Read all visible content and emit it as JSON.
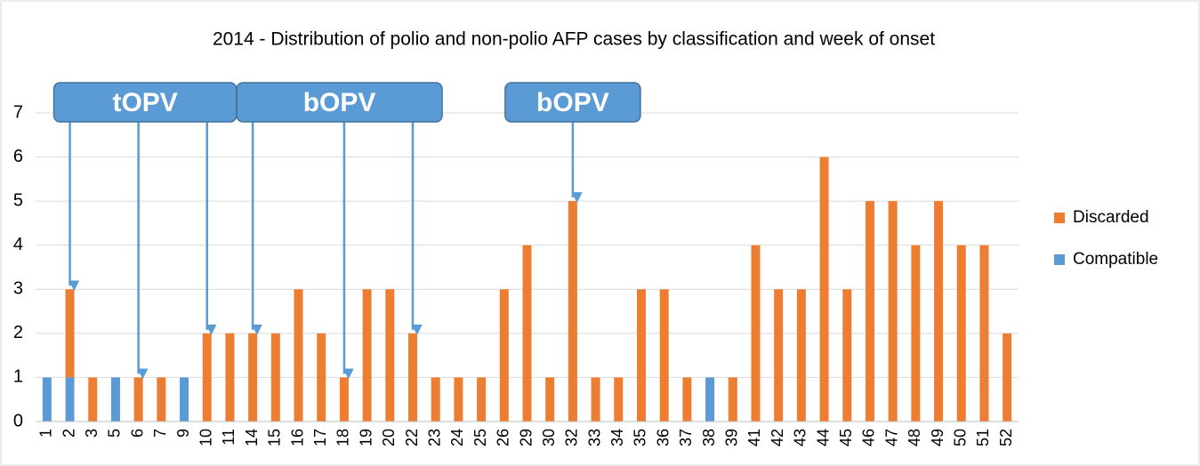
{
  "chart_data": {
    "type": "stacked_bar",
    "title": "2014 - Distribution of polio and non-polio AFP cases by classification and week of onset",
    "categories": [
      "1",
      "2",
      "3",
      "5",
      "6",
      "7",
      "9",
      "10",
      "11",
      "14",
      "15",
      "16",
      "17",
      "18",
      "19",
      "20",
      "22",
      "23",
      "24",
      "25",
      "26",
      "29",
      "30",
      "32",
      "33",
      "34",
      "35",
      "36",
      "37",
      "38",
      "39",
      "41",
      "42",
      "43",
      "44",
      "45",
      "46",
      "47",
      "48",
      "49",
      "50",
      "51",
      "52"
    ],
    "series": [
      {
        "name": "Compatible",
        "color": "#5b9bd5",
        "values": [
          1,
          1,
          0,
          1,
          0,
          0,
          1,
          0,
          0,
          0,
          0,
          0,
          0,
          0,
          0,
          0,
          0,
          0,
          0,
          0,
          0,
          0,
          0,
          0,
          0,
          0,
          0,
          0,
          0,
          1,
          0,
          0,
          0,
          0,
          0,
          0,
          0,
          0,
          0,
          0,
          0,
          0,
          0
        ]
      },
      {
        "name": "Discarded",
        "color": "#ed7d31",
        "values": [
          0,
          2,
          1,
          0,
          1,
          1,
          0,
          2,
          2,
          2,
          2,
          3,
          2,
          1,
          3,
          3,
          2,
          1,
          1,
          1,
          3,
          4,
          1,
          5,
          1,
          1,
          3,
          3,
          1,
          0,
          1,
          4,
          3,
          3,
          6,
          3,
          5,
          5,
          4,
          5,
          4,
          4,
          2
        ]
      }
    ],
    "ylim": [
      0,
      7
    ],
    "yticks": [
      0,
      1,
      2,
      3,
      4,
      5,
      6,
      7
    ],
    "grid": true,
    "legend": "right",
    "annotations": [
      {
        "text": "tOPV",
        "points_to": [
          "2",
          "6",
          "10"
        ]
      },
      {
        "text": "bOPV",
        "points_to": [
          "14",
          "18",
          "22"
        ]
      },
      {
        "text": "bOPV",
        "points_to": [
          "32"
        ]
      }
    ]
  }
}
